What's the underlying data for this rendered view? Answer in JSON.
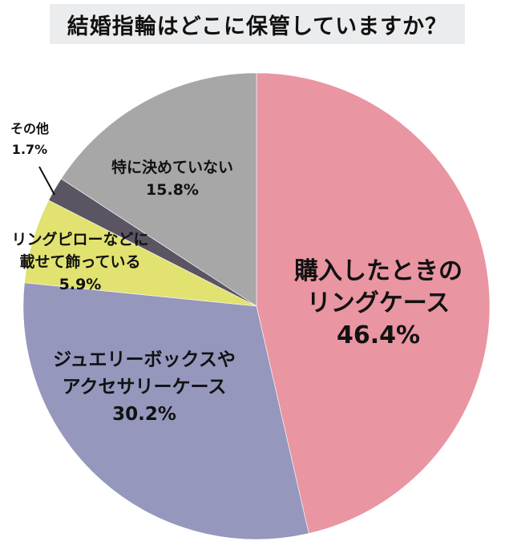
{
  "title": "結婚指輪はどこに保管していますか？",
  "colors": {
    "title_bg": "#ebecee",
    "leader_line": "#111111"
  },
  "chart_data": {
    "type": "pie",
    "title": "結婚指輪はどこに保管していますか？",
    "start_angle_deg": 0,
    "direction": "clockwise",
    "unit": "%",
    "slices": [
      {
        "name": "購入したときのリングケース",
        "label_lines": [
          "購入したときの",
          "リングケース"
        ],
        "value": 46.4,
        "value_label": "46.4%",
        "color": "#e995a2"
      },
      {
        "name": "ジュエリーボックスやアクセサリーケース",
        "label_lines": [
          "ジュエリーボックスや",
          "アクセサリーケース"
        ],
        "value": 30.2,
        "value_label": "30.2%",
        "color": "#9597bd"
      },
      {
        "name": "リングピローなどに載せて飾っている",
        "label_lines": [
          "リングピローなどに",
          "載せて飾っている"
        ],
        "value": 5.9,
        "value_label": "5.9%",
        "color": "#e1e270"
      },
      {
        "name": "その他",
        "label_lines": [
          "その他"
        ],
        "value": 1.7,
        "value_label": "1.7%",
        "color": "#5b5462"
      },
      {
        "name": "特に決めていない",
        "label_lines": [
          "特に決めていない"
        ],
        "value": 15.8,
        "value_label": "15.8%",
        "color": "#a7a7a7"
      }
    ],
    "legend": "none (labels placed on/near slices)"
  }
}
